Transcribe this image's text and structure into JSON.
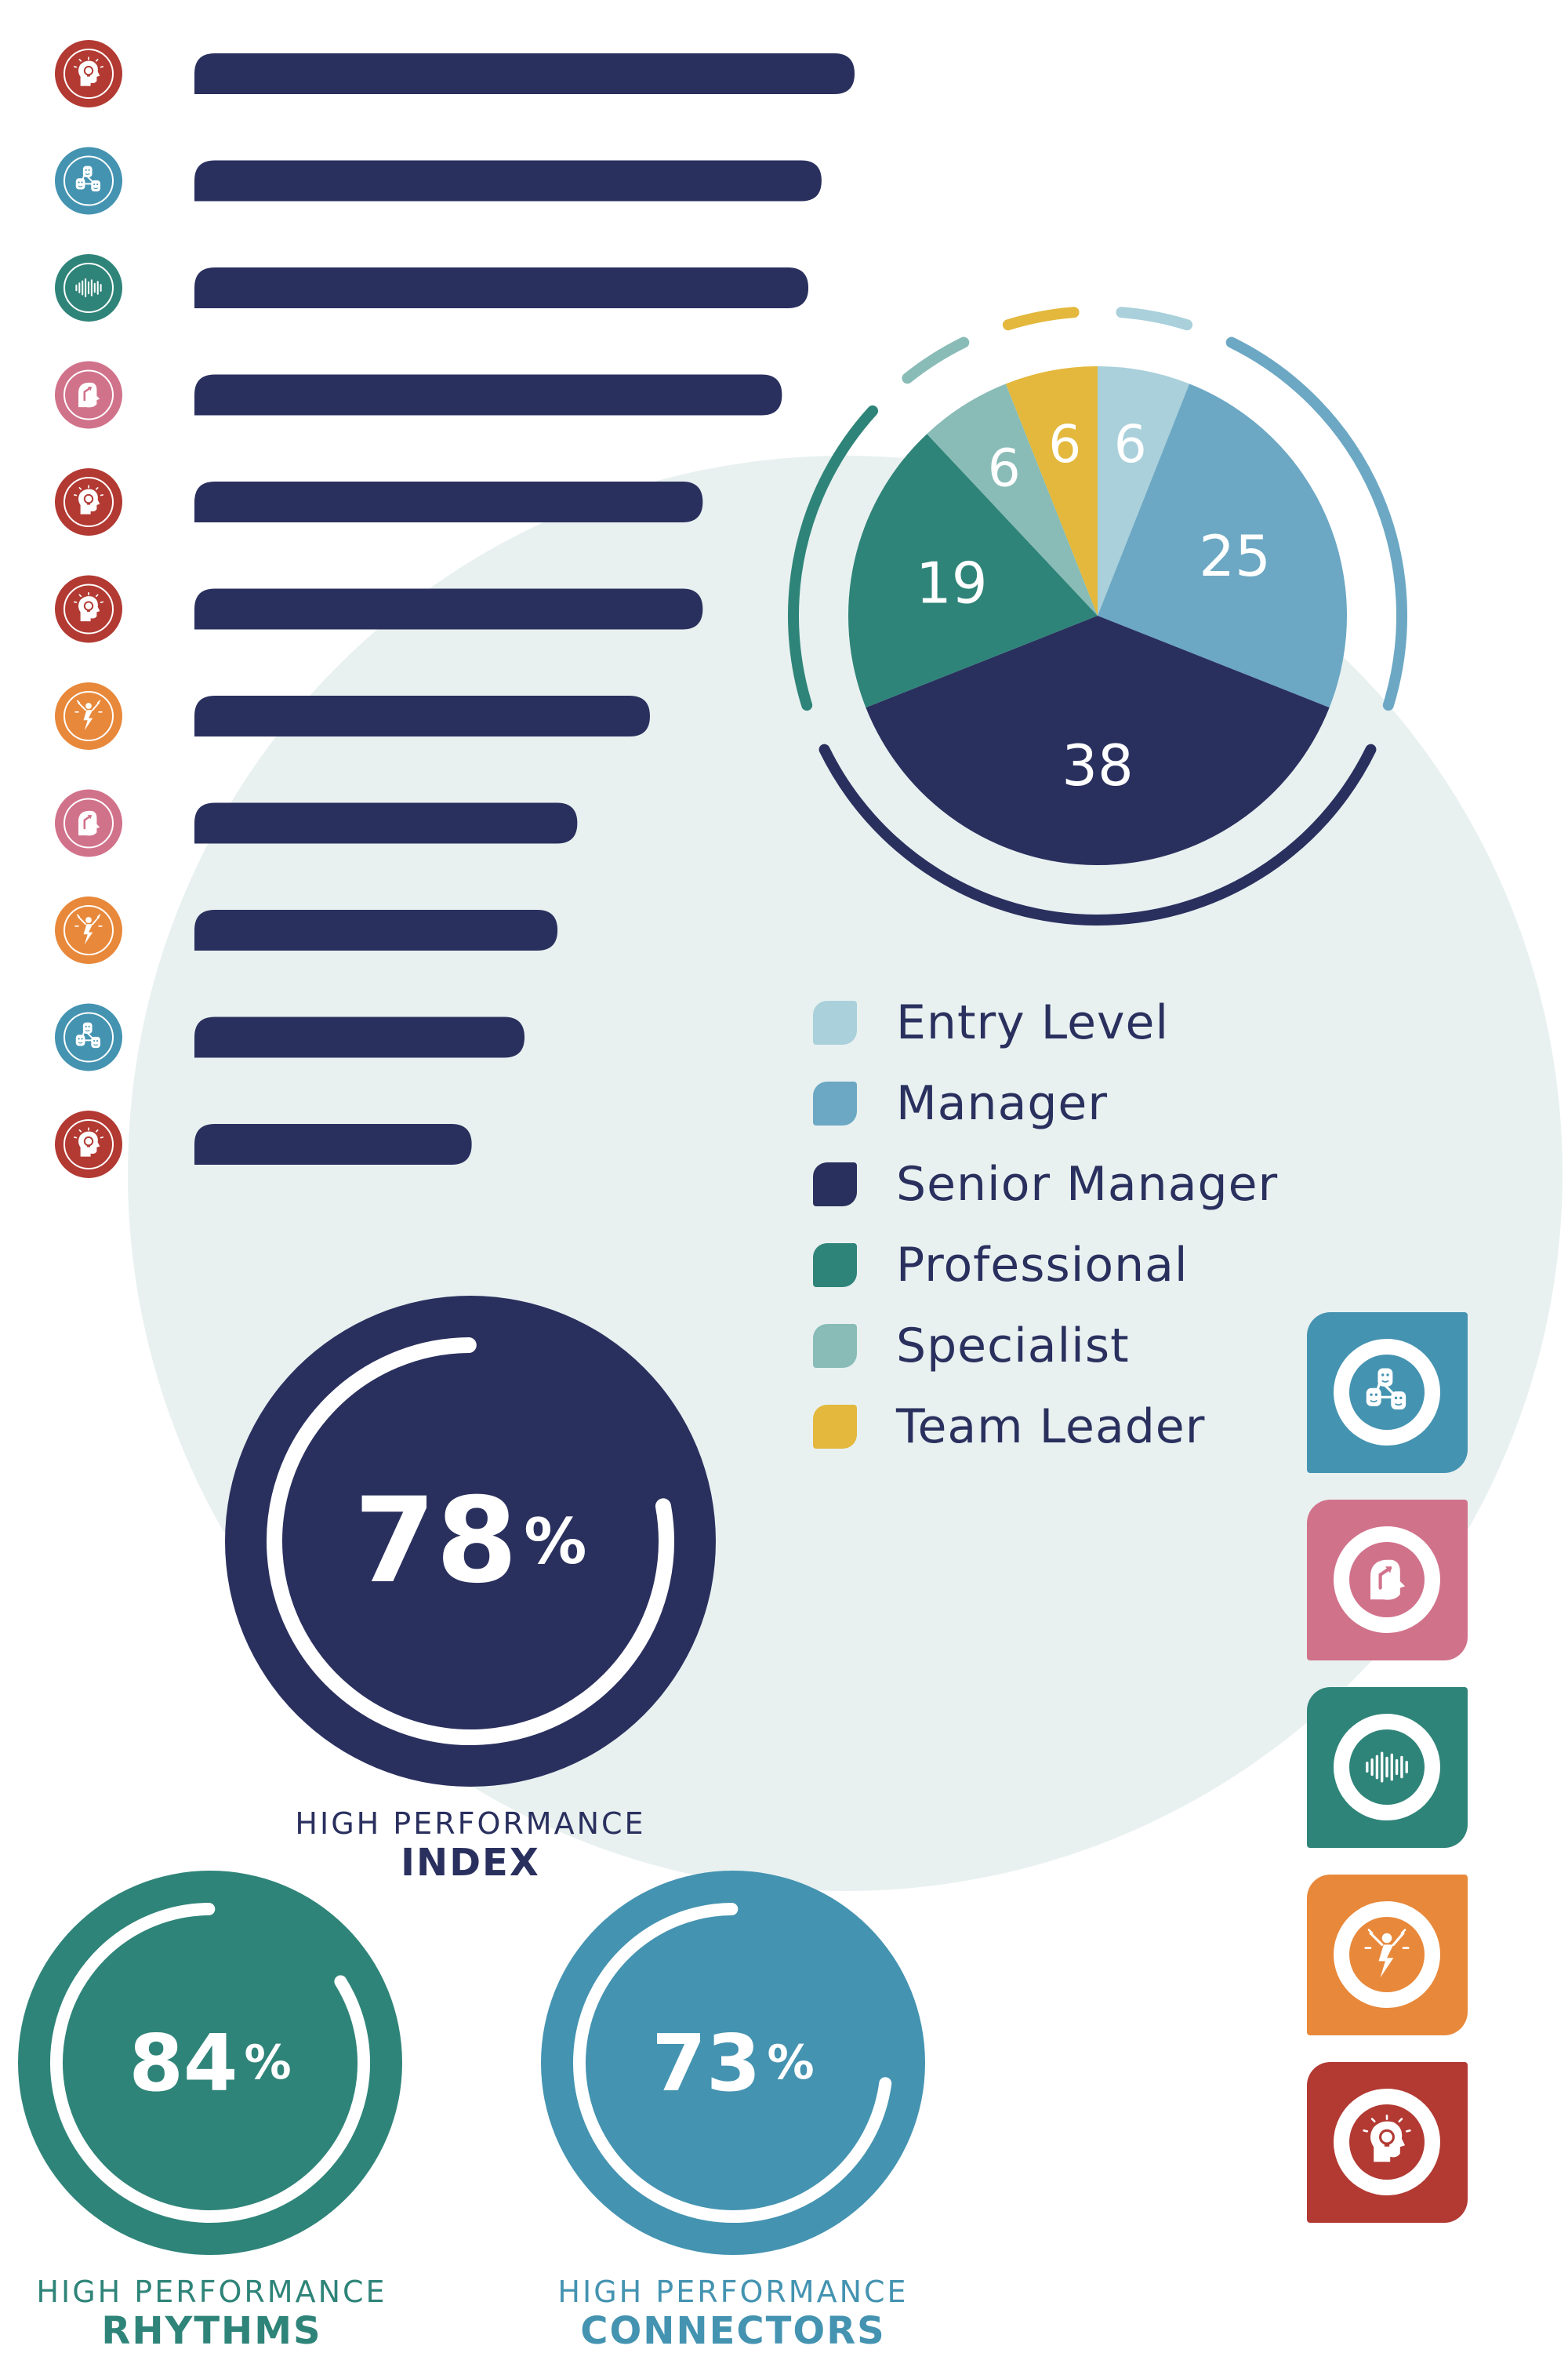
{
  "chart_data": [
    {
      "type": "bar",
      "orientation": "horizontal",
      "categories": [
        "spark",
        "connectors",
        "rhythms",
        "growth",
        "spark",
        "spark",
        "energy",
        "growth",
        "energy",
        "connectors",
        "spark"
      ],
      "values": [
        100,
        95,
        93,
        89,
        77,
        77,
        69,
        58,
        55,
        50,
        42
      ],
      "bar_color": "#2a305e"
    },
    {
      "type": "pie",
      "categories": [
        "Entry Level",
        "Manager",
        "Senior Manager",
        "Professional",
        "Specialist",
        "Team Leader"
      ],
      "values": [
        6,
        25,
        38,
        19,
        6,
        6
      ],
      "colors": [
        "#a9d0db",
        "#6ca8c4",
        "#2a305e",
        "#2f8479",
        "#89bcb7",
        "#e3b83c"
      ],
      "legend_position": "bottom"
    },
    {
      "type": "gauge",
      "gauges": [
        {
          "value": 78,
          "unit": "%",
          "label_line1": "HIGH PERFORMANCE",
          "label_line2": "INDEX",
          "color": "#2a305e"
        },
        {
          "value": 84,
          "unit": "%",
          "label_line1": "HIGH PERFORMANCE",
          "label_line2": "RHYTHMS",
          "color": "#2f8479"
        },
        {
          "value": 73,
          "unit": "%",
          "label_line1": "HIGH PERFORMANCE",
          "label_line2": "CONNECTORS",
          "color": "#4493b1"
        }
      ]
    }
  ],
  "icon_types": {
    "spark": {
      "color": "#b23a33",
      "icon": "lightbulb-head-icon"
    },
    "connectors": {
      "color": "#4493b1",
      "icon": "connected-faces-icon"
    },
    "rhythms": {
      "color": "#2f8479",
      "icon": "sound-wave-icon"
    },
    "growth": {
      "color": "#d1728b",
      "icon": "arrow-head-icon"
    },
    "energy": {
      "color": "#e8883a",
      "icon": "lightning-person-icon"
    }
  },
  "tiles": [
    "connectors",
    "growth",
    "rhythms",
    "energy",
    "spark"
  ]
}
